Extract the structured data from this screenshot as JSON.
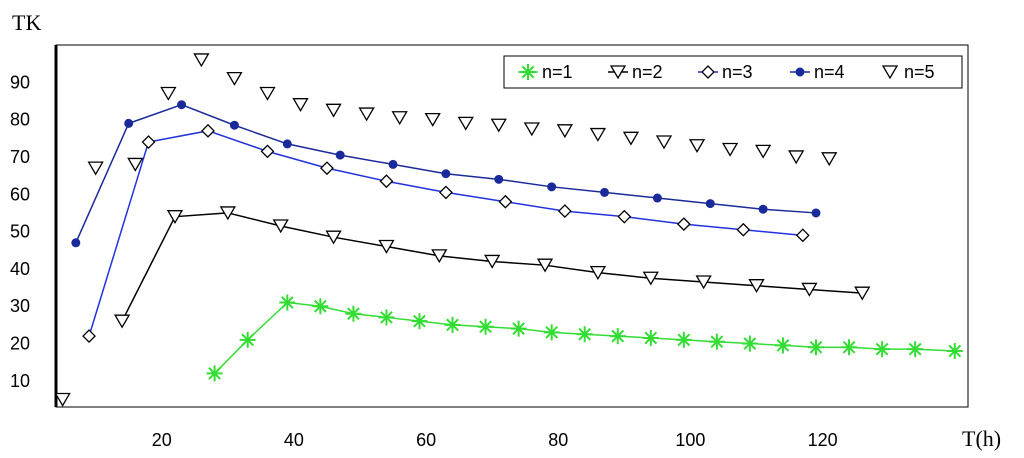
{
  "chart_data": {
    "type": "line",
    "title": "",
    "xlabel": "T(h)",
    "ylabel": "TK",
    "xlim": [
      4,
      142
    ],
    "ylim": [
      3,
      100
    ],
    "x_ticks": [
      20,
      40,
      60,
      80,
      100,
      120
    ],
    "y_ticks": [
      10,
      20,
      30,
      40,
      50,
      60,
      70,
      80,
      90
    ],
    "grid": false,
    "legend_position": "top-right",
    "series": [
      {
        "name": "n=1",
        "color": "#33dd33",
        "marker": "asterisk",
        "line": true,
        "points": [
          [
            28,
            12
          ],
          [
            33,
            21
          ],
          [
            39,
            31
          ],
          [
            44,
            30
          ],
          [
            49,
            28
          ],
          [
            54,
            27
          ],
          [
            59,
            26
          ],
          [
            64,
            25
          ],
          [
            69,
            24.5
          ],
          [
            74,
            24
          ],
          [
            79,
            23
          ],
          [
            84,
            22.5
          ],
          [
            89,
            22
          ],
          [
            94,
            21.5
          ],
          [
            99,
            21
          ],
          [
            104,
            20.5
          ],
          [
            109,
            20
          ],
          [
            114,
            19.5
          ],
          [
            119,
            19
          ],
          [
            124,
            19
          ],
          [
            129,
            18.5
          ],
          [
            134,
            18.5
          ],
          [
            140,
            18
          ]
        ]
      },
      {
        "name": "n=2",
        "color": "#000000",
        "marker": "triangle-down",
        "line": true,
        "points": [
          [
            14,
            26
          ],
          [
            22,
            54
          ],
          [
            30,
            55
          ],
          [
            38,
            51.5
          ],
          [
            46,
            48.5
          ],
          [
            54,
            46
          ],
          [
            62,
            43.5
          ],
          [
            70,
            42
          ],
          [
            78,
            41
          ],
          [
            86,
            39
          ],
          [
            94,
            37.5
          ],
          [
            102,
            36.5
          ],
          [
            110,
            35.5
          ],
          [
            118,
            34.5
          ],
          [
            126,
            33.5
          ]
        ]
      },
      {
        "name": "n=3",
        "color": "#2233dd",
        "marker": "diamond",
        "line": true,
        "points": [
          [
            9,
            22
          ],
          [
            18,
            74
          ],
          [
            27,
            77
          ],
          [
            36,
            71.5
          ],
          [
            45,
            67
          ],
          [
            54,
            63.5
          ],
          [
            63,
            60.5
          ],
          [
            72,
            58
          ],
          [
            81,
            55.5
          ],
          [
            90,
            54
          ],
          [
            99,
            52
          ],
          [
            108,
            50.5
          ],
          [
            117,
            49
          ]
        ]
      },
      {
        "name": "n=4",
        "color": "#1a2a9a",
        "marker": "dot",
        "line": true,
        "points": [
          [
            7,
            47
          ],
          [
            15,
            79
          ],
          [
            23,
            84
          ],
          [
            31,
            78.5
          ],
          [
            39,
            73.5
          ],
          [
            47,
            70.5
          ],
          [
            55,
            68
          ],
          [
            63,
            65.5
          ],
          [
            71,
            64
          ],
          [
            79,
            62
          ],
          [
            87,
            60.5
          ],
          [
            95,
            59
          ],
          [
            103,
            57.5
          ],
          [
            111,
            56
          ],
          [
            119,
            55
          ]
        ]
      },
      {
        "name": "n=5",
        "color": "#000000",
        "marker": "triangle-down",
        "line": false,
        "points": [
          [
            5,
            5
          ],
          [
            10,
            67
          ],
          [
            16,
            68
          ],
          [
            21,
            87
          ],
          [
            26,
            96
          ],
          [
            31,
            91
          ],
          [
            36,
            87
          ],
          [
            41,
            84
          ],
          [
            46,
            82.5
          ],
          [
            51,
            81.5
          ],
          [
            56,
            80.5
          ],
          [
            61,
            80
          ],
          [
            66,
            79
          ],
          [
            71,
            78.5
          ],
          [
            76,
            77.5
          ],
          [
            81,
            77
          ],
          [
            86,
            76
          ],
          [
            91,
            75
          ],
          [
            96,
            74
          ],
          [
            101,
            73
          ],
          [
            106,
            72
          ],
          [
            111,
            71.5
          ],
          [
            116,
            70
          ],
          [
            121,
            69.5
          ]
        ]
      }
    ]
  }
}
